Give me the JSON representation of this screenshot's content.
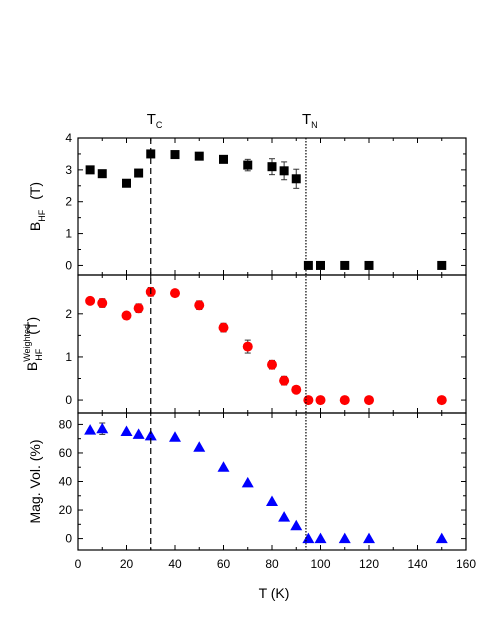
{
  "chart_data": {
    "type": "scatter",
    "xlabel": "T (K)",
    "xlim": [
      0,
      160
    ],
    "xticks": [
      "0",
      "20",
      "40",
      "60",
      "80",
      "100",
      "120",
      "140",
      "160"
    ],
    "vlines": [
      {
        "label_main": "T",
        "label_sub": "C",
        "x": 30,
        "style": "dashed"
      },
      {
        "label_main": "T",
        "label_sub": "N",
        "x": 94,
        "style": "dotted"
      }
    ],
    "panels": [
      {
        "ylabel_main": "B",
        "ylabel_sub": "HF",
        "ylabel_sup": "",
        "ylabel_unit": "(T)",
        "ylim": [
          -0.3,
          4.0
        ],
        "yticks": [
          "0",
          "1",
          "2",
          "3",
          "4"
        ],
        "marker": "square",
        "color": "#000000",
        "x": [
          5,
          10,
          20,
          25,
          30,
          40,
          50,
          60,
          70,
          80,
          85,
          90,
          95,
          100,
          110,
          120,
          150
        ],
        "y": [
          3.0,
          2.88,
          2.58,
          2.9,
          3.5,
          3.48,
          3.43,
          3.33,
          3.15,
          3.1,
          2.97,
          2.72,
          0.0,
          0.0,
          0.0,
          0.0,
          0.0
        ],
        "yerr": [
          0,
          0,
          0,
          0,
          0,
          0,
          0,
          0,
          0.18,
          0.25,
          0.28,
          0.3,
          0,
          0,
          0,
          0,
          0
        ]
      },
      {
        "ylabel_main": "B",
        "ylabel_sub": "HF",
        "ylabel_sup": "Weighted",
        "ylabel_unit": "(T)",
        "ylim": [
          -0.3,
          2.9
        ],
        "yticks": [
          "0",
          "1",
          "2"
        ],
        "marker": "circle",
        "color": "#ff0000",
        "x": [
          5,
          10,
          20,
          25,
          30,
          40,
          50,
          60,
          70,
          80,
          85,
          90,
          95,
          100,
          110,
          120,
          150
        ],
        "y": [
          2.3,
          2.25,
          1.96,
          2.13,
          2.51,
          2.48,
          2.2,
          1.68,
          1.24,
          0.82,
          0.45,
          0.24,
          0.0,
          0.0,
          0.0,
          0.0,
          0.0
        ],
        "yerr": [
          0,
          0.1,
          0,
          0.1,
          0.1,
          0,
          0.1,
          0.1,
          0.15,
          0.1,
          0.1,
          0,
          0,
          0,
          0,
          0,
          0
        ]
      },
      {
        "ylabel_main": "Mag. Vol. (%)",
        "ylabel_sub": "",
        "ylabel_sup": "",
        "ylabel_unit": "",
        "ylim": [
          -8,
          88
        ],
        "yticks": [
          "0",
          "20",
          "40",
          "60",
          "80"
        ],
        "marker": "triangle",
        "color": "#0000ff",
        "x": [
          5,
          10,
          20,
          25,
          30,
          40,
          50,
          60,
          70,
          80,
          85,
          90,
          95,
          100,
          110,
          120,
          150
        ],
        "y": [
          76,
          77,
          75,
          73,
          72,
          71,
          64,
          50,
          39,
          26,
          15,
          9,
          0,
          0,
          0,
          0,
          0
        ],
        "yerr": [
          0,
          4,
          0,
          0,
          0,
          0,
          0,
          0,
          0,
          0,
          0,
          0,
          0,
          0,
          0,
          0,
          0
        ]
      }
    ]
  }
}
